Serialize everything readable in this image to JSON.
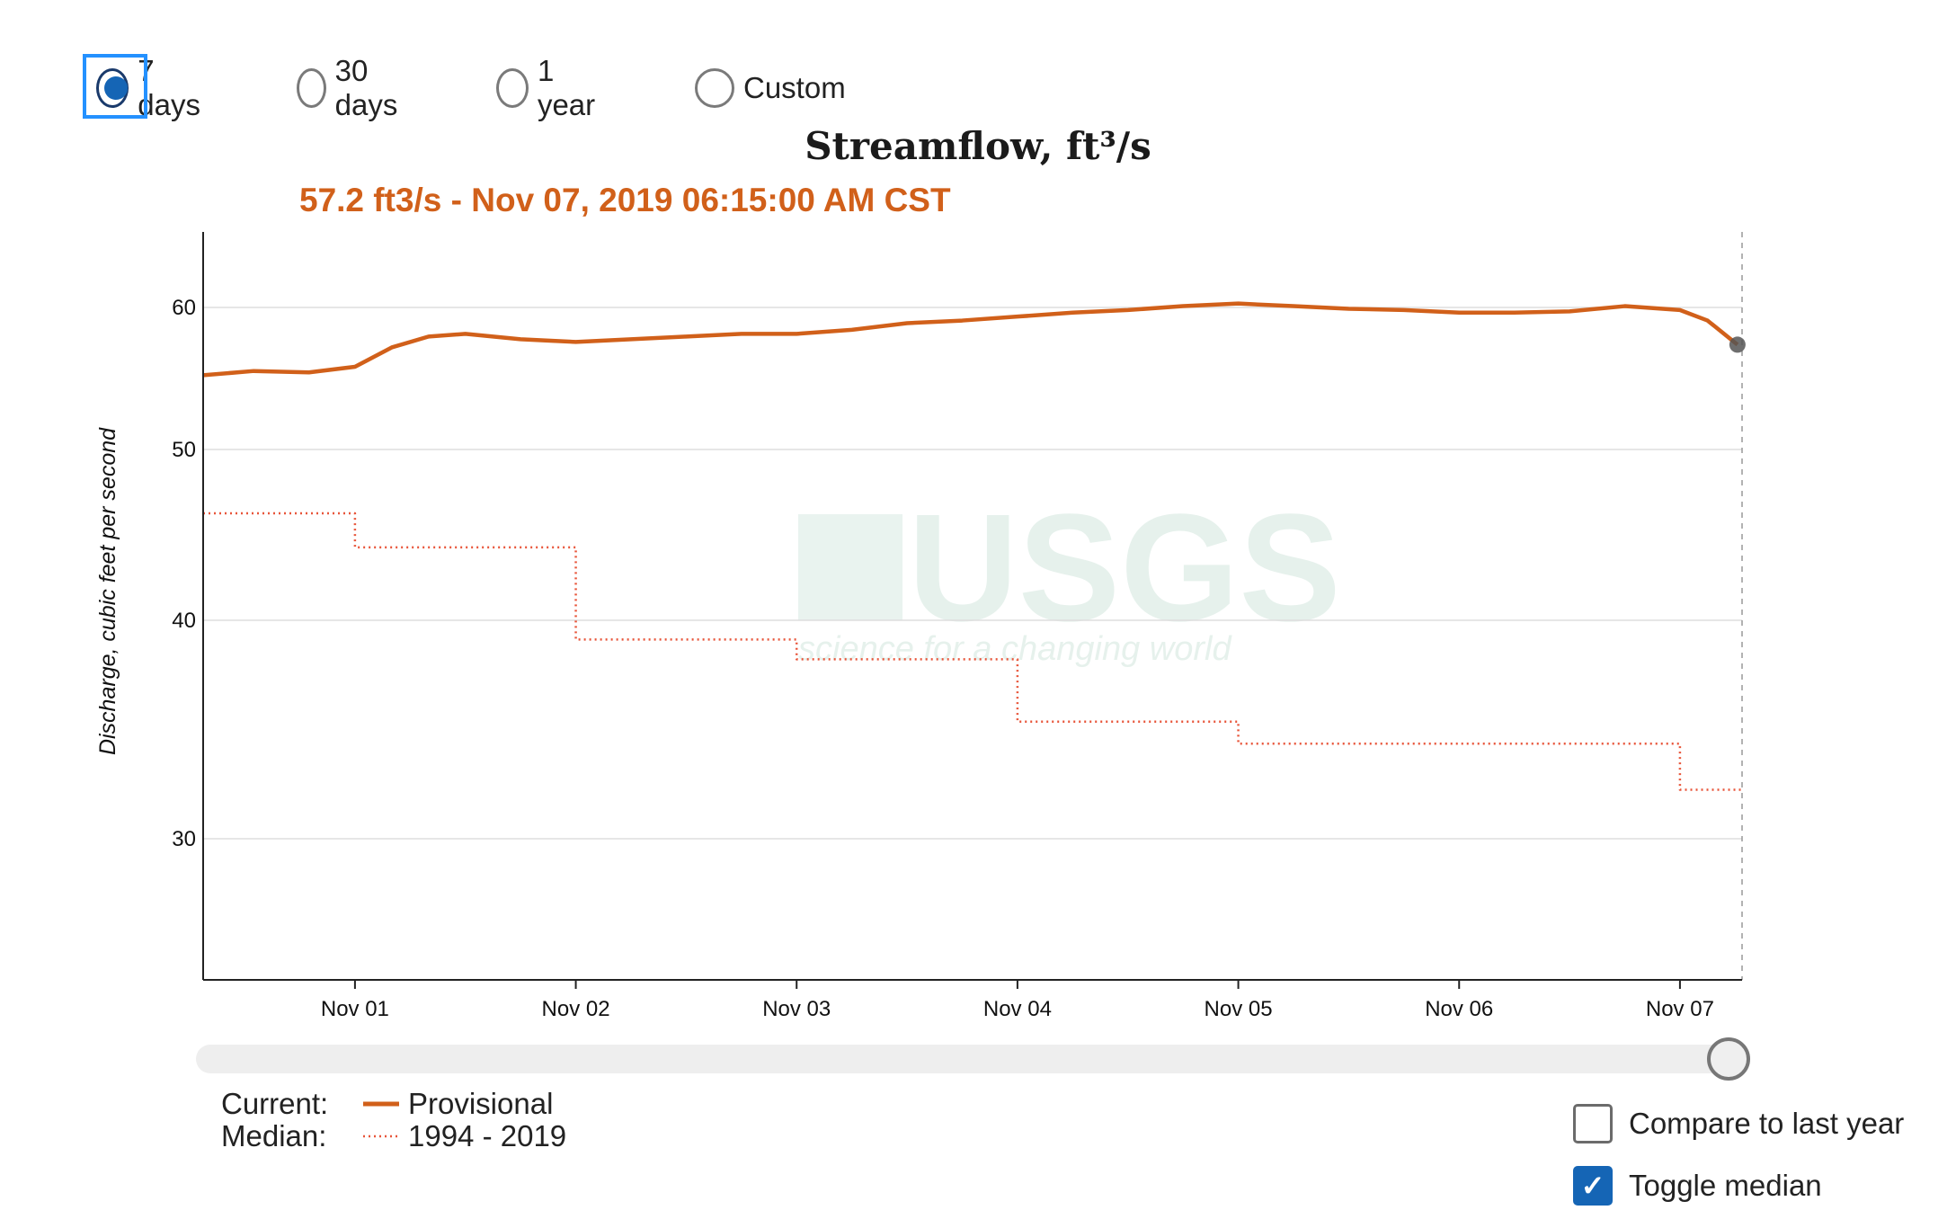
{
  "time_range": {
    "options": [
      {
        "label": "7 days",
        "selected": true
      },
      {
        "label": "30 days",
        "selected": false
      },
      {
        "label": "1 year",
        "selected": false
      },
      {
        "label": "Custom",
        "selected": false
      }
    ]
  },
  "tooltip": "57.2 ft3/s - Nov 07, 2019 06:15:00 AM CST",
  "legend": {
    "current_key": "Current:",
    "current_label": "Provisional",
    "median_key": "Median:",
    "median_label": "1994 - 2019"
  },
  "controls": {
    "compare_label": "Compare to last year",
    "compare_checked": false,
    "median_label": "Toggle median",
    "median_checked": true
  },
  "watermark": {
    "logo": "USGS",
    "tagline": "science for a changing world"
  },
  "colors": {
    "current": "#d1601a",
    "median": "#e8553a",
    "accent": "#1565b5"
  },
  "chart_data": {
    "type": "line",
    "title": "Streamflow, ft³/s",
    "ylabel": "Discharge, cubic feet per second",
    "xlabel": "",
    "y_scale": "log",
    "yticks": [
      30,
      40,
      50,
      60
    ],
    "ylim": [
      27,
      64
    ],
    "xlim": [
      "2019-10-31T07:30",
      "2019-11-07T06:45"
    ],
    "xticks": [
      "Nov 01",
      "Nov 02",
      "Nov 03",
      "Nov 04",
      "Nov 05",
      "Nov 06",
      "Nov 07"
    ],
    "xtick_dates": [
      "2019-11-01",
      "2019-11-02",
      "2019-11-03",
      "2019-11-04",
      "2019-11-05",
      "2019-11-06",
      "2019-11-07"
    ],
    "grid": true,
    "legend_position": "bottom-left",
    "series": [
      {
        "name": "Provisional",
        "style": "solid",
        "x": [
          "2019-10-31T07:30",
          "2019-10-31T13:00",
          "2019-10-31T19:00",
          "2019-11-01T00:00",
          "2019-11-01T04:00",
          "2019-11-01T08:00",
          "2019-11-01T12:00",
          "2019-11-01T18:00",
          "2019-11-02T00:00",
          "2019-11-02T06:00",
          "2019-11-02T12:00",
          "2019-11-02T18:00",
          "2019-11-03T00:00",
          "2019-11-03T06:00",
          "2019-11-03T12:00",
          "2019-11-03T18:00",
          "2019-11-04T00:00",
          "2019-11-04T06:00",
          "2019-11-04T12:00",
          "2019-11-04T18:00",
          "2019-11-05T00:00",
          "2019-11-05T06:00",
          "2019-11-05T12:00",
          "2019-11-05T18:00",
          "2019-11-06T00:00",
          "2019-11-06T06:00",
          "2019-11-06T12:00",
          "2019-11-06T18:00",
          "2019-11-07T00:00",
          "2019-11-07T03:00",
          "2019-11-07T06:15"
        ],
        "y": [
          55.0,
          55.3,
          55.2,
          55.6,
          57.0,
          57.8,
          58.0,
          57.6,
          57.4,
          57.6,
          57.8,
          58.0,
          58.0,
          58.3,
          58.8,
          59.0,
          59.3,
          59.6,
          59.8,
          60.1,
          60.3,
          60.1,
          59.9,
          59.8,
          59.6,
          59.6,
          59.7,
          60.1,
          59.8,
          59.0,
          57.2
        ]
      },
      {
        "name": "1994 - 2019",
        "style": "dotted",
        "x": [
          "2019-10-31T07:30",
          "2019-11-01T00:00",
          "2019-11-02T00:00",
          "2019-11-03T00:00",
          "2019-11-04T00:00",
          "2019-11-05T00:00",
          "2019-11-06T00:00",
          "2019-11-07T00:00",
          "2019-11-07T06:45"
        ],
        "y": [
          46.0,
          44.0,
          39.0,
          38.0,
          35.0,
          34.0,
          34.0,
          32.0,
          32.0
        ],
        "step": "after"
      }
    ],
    "current_point": {
      "x": "2019-11-07T06:15",
      "y": 57.2
    }
  }
}
